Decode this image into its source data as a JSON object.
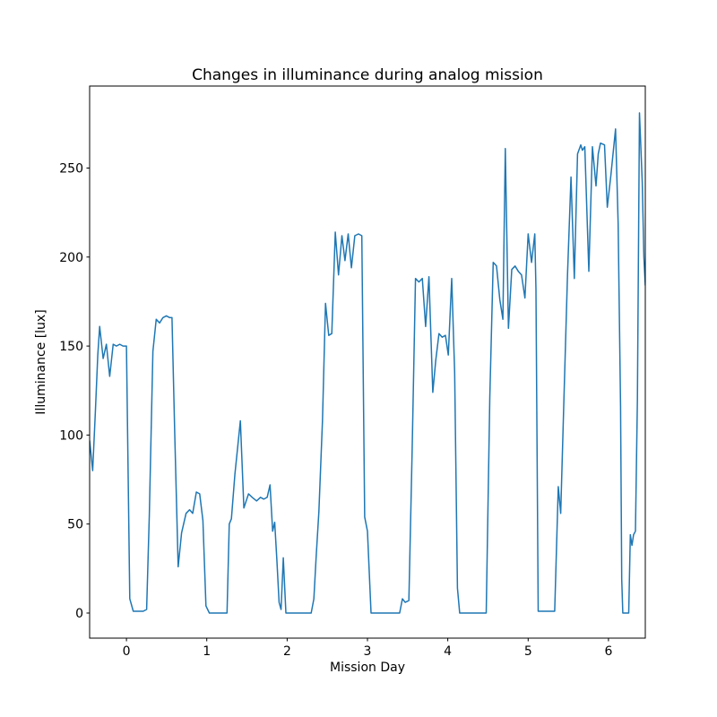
{
  "chart_data": {
    "type": "line",
    "title": "Changes in illuminance during analog mission",
    "xlabel": "Mission Day",
    "ylabel": "Illuminance [lux]",
    "x_ticks": [
      0,
      1,
      2,
      3,
      4,
      5,
      6
    ],
    "y_ticks": [
      0,
      50,
      100,
      150,
      200,
      250
    ],
    "xlim": [
      -0.458,
      6.458
    ],
    "ylim": [
      -14.1,
      296.1
    ],
    "grid": false,
    "legend_position": "none",
    "line_color": "#1f77b4",
    "axis_color": "#000000",
    "background_color": "#ffffff",
    "series": [
      {
        "name": "illuminance",
        "points": [
          [
            -0.458,
            97
          ],
          [
            -0.42,
            80
          ],
          [
            -0.387,
            113
          ],
          [
            -0.357,
            145
          ],
          [
            -0.333,
            161
          ],
          [
            -0.29,
            143
          ],
          [
            -0.249,
            151
          ],
          [
            -0.208,
            133
          ],
          [
            -0.165,
            151
          ],
          [
            -0.124,
            150
          ],
          [
            -0.083,
            151
          ],
          [
            -0.042,
            150
          ],
          [
            0.0,
            150
          ],
          [
            0.042,
            8
          ],
          [
            0.085,
            1
          ],
          [
            0.125,
            1
          ],
          [
            0.167,
            1
          ],
          [
            0.209,
            1
          ],
          [
            0.251,
            2
          ],
          [
            0.285,
            55
          ],
          [
            0.33,
            147
          ],
          [
            0.371,
            165
          ],
          [
            0.413,
            163
          ],
          [
            0.455,
            166
          ],
          [
            0.497,
            167
          ],
          [
            0.539,
            166
          ],
          [
            0.567,
            166
          ],
          [
            0.602,
            100
          ],
          [
            0.644,
            26
          ],
          [
            0.686,
            45
          ],
          [
            0.742,
            56
          ],
          [
            0.786,
            58
          ],
          [
            0.825,
            56
          ],
          [
            0.87,
            68
          ],
          [
            0.912,
            67
          ],
          [
            0.952,
            52
          ],
          [
            0.99,
            4
          ],
          [
            1.032,
            0
          ],
          [
            1.12,
            0
          ],
          [
            1.21,
            0
          ],
          [
            1.252,
            0
          ],
          [
            1.28,
            50
          ],
          [
            1.307,
            53
          ],
          [
            1.35,
            78
          ],
          [
            1.418,
            108
          ],
          [
            1.462,
            59
          ],
          [
            1.52,
            67
          ],
          [
            1.565,
            65
          ],
          [
            1.62,
            63
          ],
          [
            1.668,
            65
          ],
          [
            1.71,
            64
          ],
          [
            1.752,
            65
          ],
          [
            1.787,
            72
          ],
          [
            1.82,
            46
          ],
          [
            1.845,
            51
          ],
          [
            1.872,
            30
          ],
          [
            1.9,
            6
          ],
          [
            1.925,
            2
          ],
          [
            1.953,
            31
          ],
          [
            1.985,
            0
          ],
          [
            2.08,
            0
          ],
          [
            2.2,
            0
          ],
          [
            2.3,
            0
          ],
          [
            2.333,
            8
          ],
          [
            2.362,
            32
          ],
          [
            2.395,
            57
          ],
          [
            2.44,
            108
          ],
          [
            2.478,
            174
          ],
          [
            2.518,
            156
          ],
          [
            2.556,
            157
          ],
          [
            2.6,
            214
          ],
          [
            2.64,
            190
          ],
          [
            2.682,
            212
          ],
          [
            2.72,
            198
          ],
          [
            2.76,
            213
          ],
          [
            2.8,
            194
          ],
          [
            2.843,
            212
          ],
          [
            2.888,
            213
          ],
          [
            2.93,
            212
          ],
          [
            2.965,
            54
          ],
          [
            3.0,
            46
          ],
          [
            3.045,
            0
          ],
          [
            3.15,
            0
          ],
          [
            3.28,
            0
          ],
          [
            3.4,
            0
          ],
          [
            3.435,
            8
          ],
          [
            3.47,
            6
          ],
          [
            3.515,
            7
          ],
          [
            3.555,
            90
          ],
          [
            3.598,
            188
          ],
          [
            3.64,
            186
          ],
          [
            3.683,
            188
          ],
          [
            3.724,
            161
          ],
          [
            3.765,
            189
          ],
          [
            3.813,
            124
          ],
          [
            3.85,
            142
          ],
          [
            3.89,
            157
          ],
          [
            3.93,
            155
          ],
          [
            3.97,
            156
          ],
          [
            4.006,
            145
          ],
          [
            4.048,
            188
          ],
          [
            4.085,
            135
          ],
          [
            4.12,
            14
          ],
          [
            4.148,
            0
          ],
          [
            4.25,
            0
          ],
          [
            4.37,
            0
          ],
          [
            4.478,
            0
          ],
          [
            4.523,
            121
          ],
          [
            4.565,
            197
          ],
          [
            4.606,
            195
          ],
          [
            4.648,
            176
          ],
          [
            4.685,
            165
          ],
          [
            4.716,
            261
          ],
          [
            4.755,
            160
          ],
          [
            4.796,
            193
          ],
          [
            4.837,
            195
          ],
          [
            4.877,
            192
          ],
          [
            4.918,
            190
          ],
          [
            4.96,
            177
          ],
          [
            5.0,
            213
          ],
          [
            5.042,
            197
          ],
          [
            5.083,
            213
          ],
          [
            5.097,
            182
          ],
          [
            5.125,
            1
          ],
          [
            5.2,
            1
          ],
          [
            5.27,
            1
          ],
          [
            5.33,
            1
          ],
          [
            5.375,
            71
          ],
          [
            5.405,
            56
          ],
          [
            5.445,
            120
          ],
          [
            5.49,
            190
          ],
          [
            5.533,
            245
          ],
          [
            5.575,
            188
          ],
          [
            5.615,
            258
          ],
          [
            5.655,
            263
          ],
          [
            5.675,
            260
          ],
          [
            5.705,
            262
          ],
          [
            5.755,
            192
          ],
          [
            5.8,
            262
          ],
          [
            5.845,
            240
          ],
          [
            5.872,
            258
          ],
          [
            5.9,
            264
          ],
          [
            5.95,
            263
          ],
          [
            5.985,
            228
          ],
          [
            6.03,
            246
          ],
          [
            6.088,
            272
          ],
          [
            6.12,
            219
          ],
          [
            6.15,
            116
          ],
          [
            6.165,
            19
          ],
          [
            6.178,
            0
          ],
          [
            6.22,
            0
          ],
          [
            6.252,
            0
          ],
          [
            6.272,
            44
          ],
          [
            6.292,
            38
          ],
          [
            6.312,
            44
          ],
          [
            6.335,
            46
          ],
          [
            6.36,
            120
          ],
          [
            6.385,
            281
          ],
          [
            6.42,
            242
          ],
          [
            6.44,
            200
          ],
          [
            6.458,
            184
          ]
        ]
      }
    ]
  }
}
